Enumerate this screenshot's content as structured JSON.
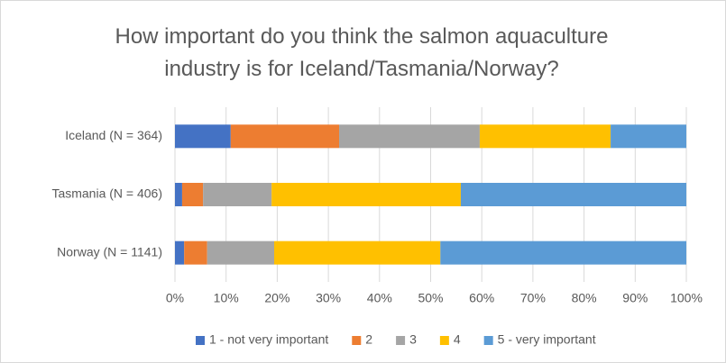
{
  "chart_data": {
    "type": "stacked-bar-horizontal",
    "title": "How important do you think the salmon aquaculture industry is for Iceland/Tasmania/Norway?",
    "categories": [
      "Iceland (N = 364)",
      "Tasmania (N = 406)",
      "Norway (N = 1141)"
    ],
    "series": [
      {
        "name": "1 - not very important",
        "color": "#4472c4",
        "values": [
          10.9,
          1.4,
          1.8
        ]
      },
      {
        "name": "2",
        "color": "#ed7d31",
        "values": [
          21.2,
          4.1,
          4.5
        ]
      },
      {
        "name": "3",
        "color": "#a5a5a5",
        "values": [
          27.5,
          13.4,
          13.1
        ]
      },
      {
        "name": "4",
        "color": "#ffc000",
        "values": [
          25.6,
          37.0,
          32.5
        ]
      },
      {
        "name": "5 - very important",
        "color": "#5b9bd5",
        "values": [
          14.8,
          44.1,
          48.1
        ]
      }
    ],
    "xlim": [
      0,
      100
    ],
    "xticks": [
      {
        "value": 0,
        "label": "0%"
      },
      {
        "value": 10,
        "label": "10%"
      },
      {
        "value": 20,
        "label": "20%"
      },
      {
        "value": 30,
        "label": "30%"
      },
      {
        "value": 40,
        "label": "40%"
      },
      {
        "value": 50,
        "label": "50%"
      },
      {
        "value": 60,
        "label": "60%"
      },
      {
        "value": 70,
        "label": "70%"
      },
      {
        "value": 80,
        "label": "80%"
      },
      {
        "value": 90,
        "label": "90%"
      },
      {
        "value": 100,
        "label": "100%"
      }
    ],
    "grid": true,
    "legend": "bottom"
  }
}
